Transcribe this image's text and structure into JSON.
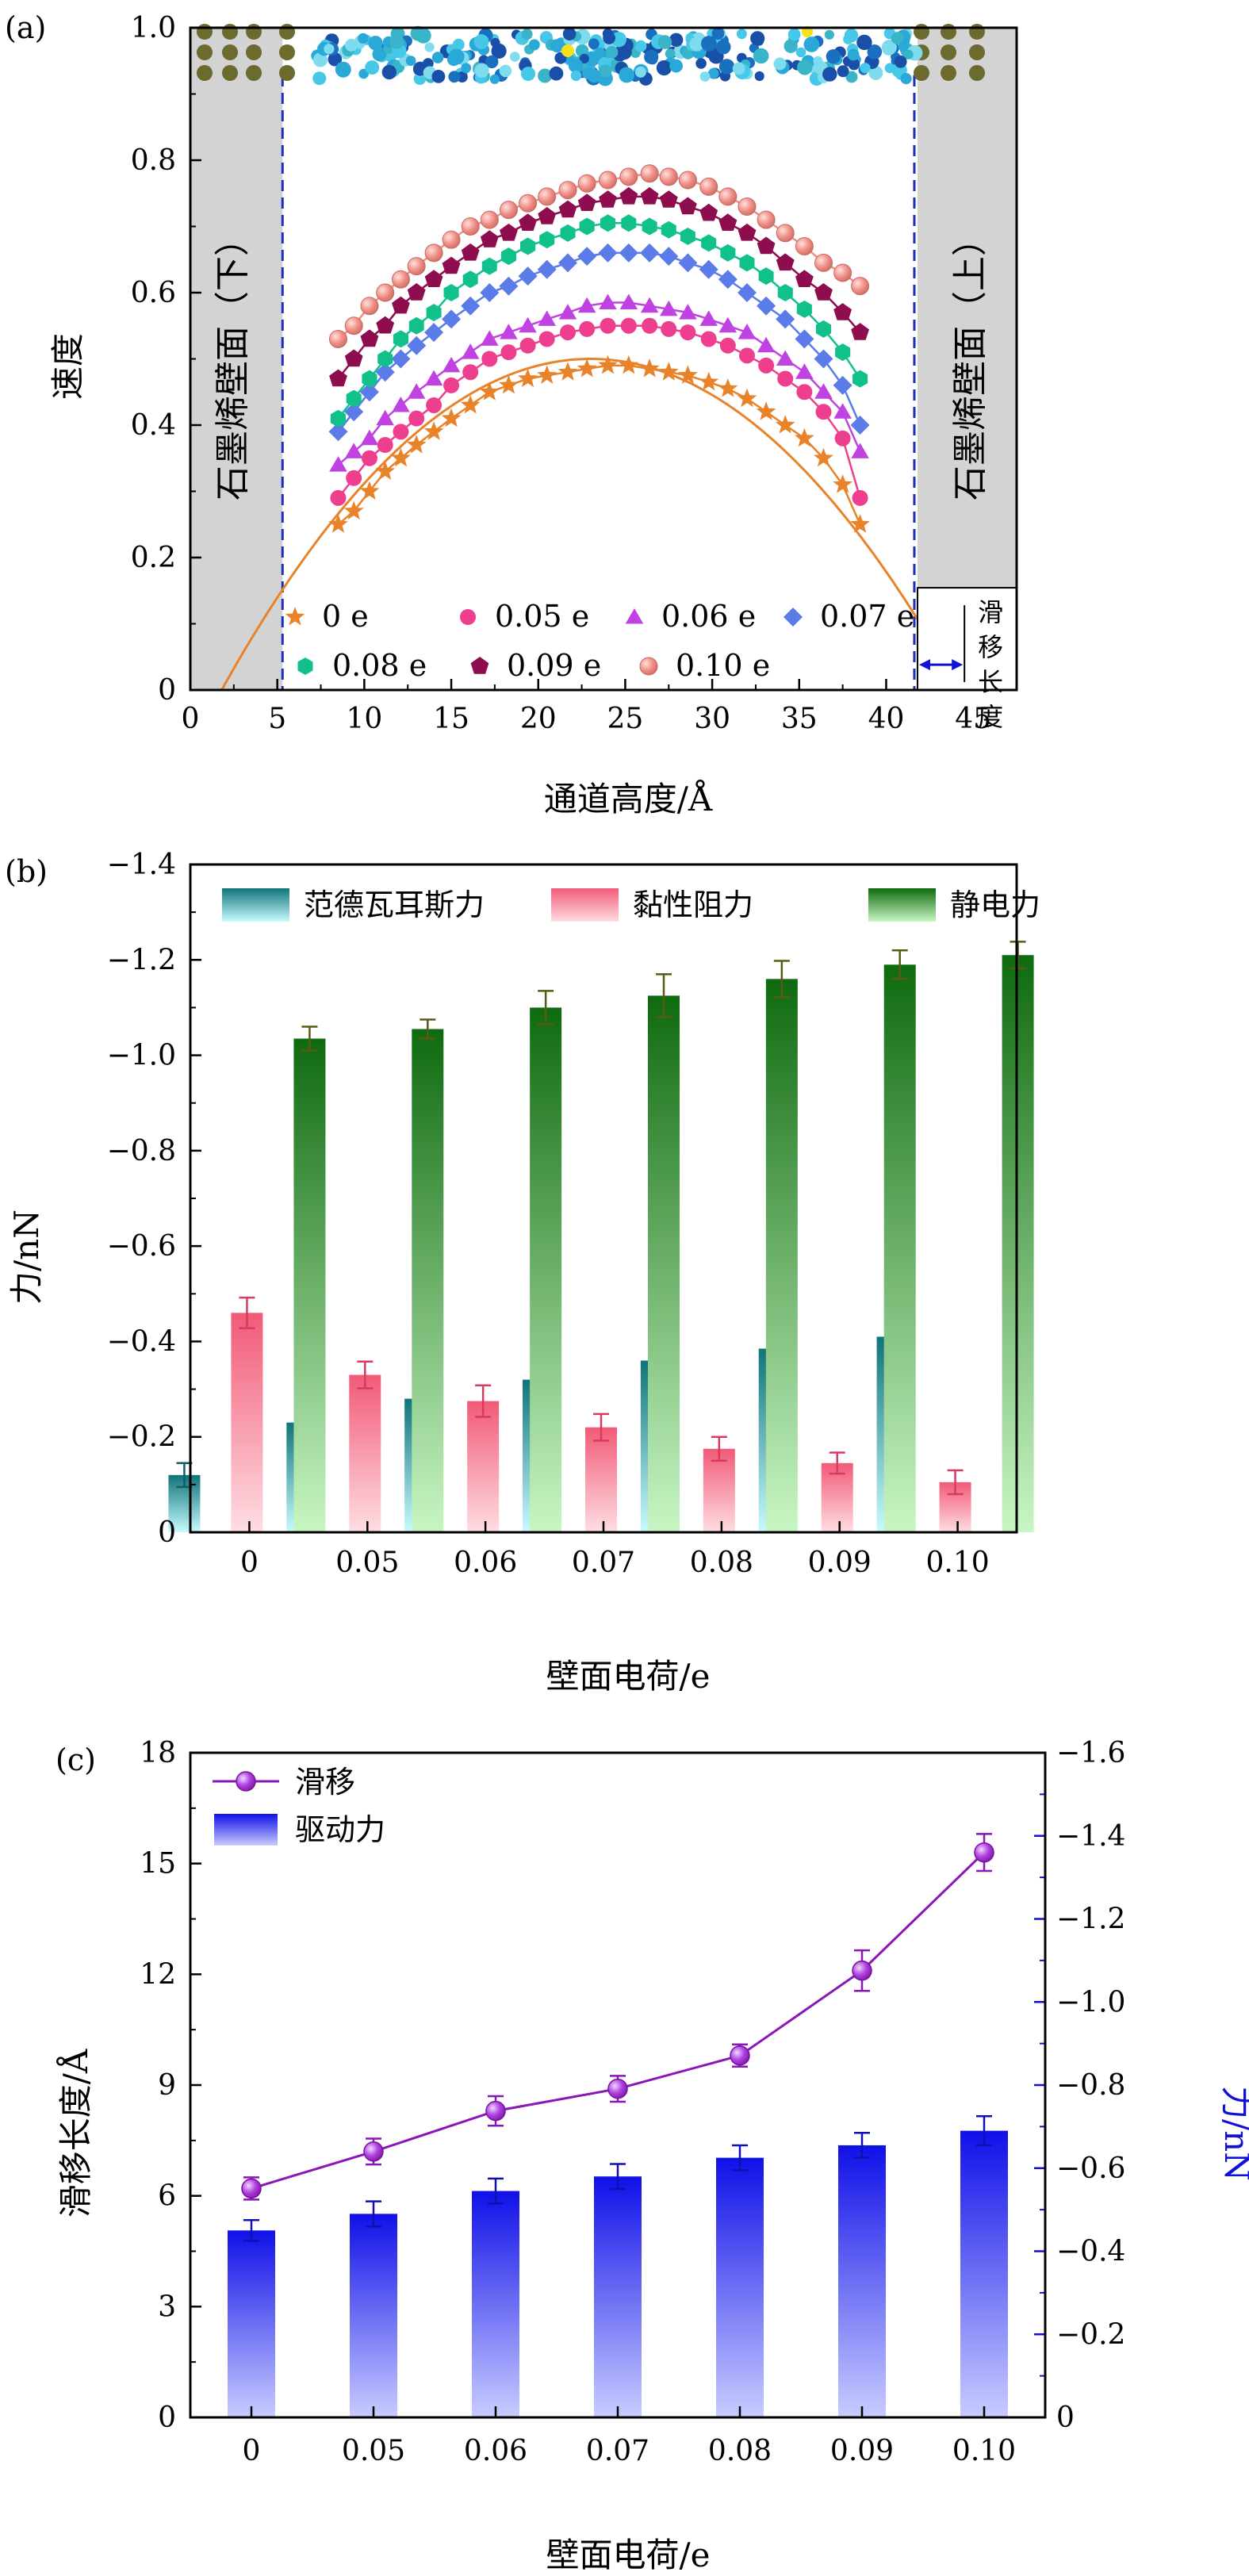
{
  "colors": {
    "c0": "#e8832a",
    "c005": "#ee3f8e",
    "c006": "#c042e0",
    "c007": "#5a7be8",
    "c008": "#12c08c",
    "c009": "#8e0d4f",
    "c010": "#ef8d84",
    "vdw": "#0f7479",
    "visc": "#f0607c",
    "elec": "#146a14",
    "slip": "#8a16b8",
    "drive": "#1010e8",
    "wall": "#d3d3d3",
    "rightAxis": "#1010d8"
  },
  "panels": {
    "a": {
      "label": "(a)",
      "xlabel": "通道高度/Å",
      "ylabel": "速度",
      "wall_left": "石墨烯壁面（下）",
      "wall_right": "石墨烯壁面（上）",
      "slip_label": "滑移长度",
      "xticks": [
        "0",
        "5",
        "10",
        "15",
        "20",
        "25",
        "30",
        "35",
        "40",
        "45"
      ],
      "yticks": [
        "0",
        "0.2",
        "0.4",
        "0.6",
        "0.8",
        "1.0"
      ]
    },
    "b": {
      "label": "(b)",
      "xlabel": "壁面电荷/e",
      "ylabel": "力/nN",
      "yticks": [
        "0",
        "−0.2",
        "−0.4",
        "−0.6",
        "−0.8",
        "−1.0",
        "−1.2",
        "−1.4"
      ]
    },
    "c": {
      "label": "(c)",
      "xlabel": "壁面电荷/e",
      "ylabel": "滑移长度/Å",
      "ylabel_right": "力/nN",
      "yticks": [
        "0",
        "3",
        "6",
        "9",
        "12",
        "15",
        "18"
      ],
      "yticks_right": [
        "0",
        "−0.2",
        "−0.4",
        "−0.6",
        "−0.8",
        "−1.0",
        "−1.2",
        "−1.4",
        "−1.6"
      ]
    }
  },
  "chart_data": [
    {
      "type": "scatter",
      "panel": "a",
      "x": [
        8.5,
        9.4,
        10.3,
        11.2,
        12.1,
        13.0,
        14.0,
        15.0,
        16.1,
        17.2,
        18.3,
        19.4,
        20.5,
        21.7,
        22.8,
        24.0,
        25.2,
        26.4,
        27.5,
        28.6,
        29.8,
        30.9,
        32.0,
        33.1,
        34.2,
        35.3,
        36.4,
        37.5,
        38.5
      ],
      "xlim": [
        0,
        47.5
      ],
      "ylim": [
        0,
        1.0
      ],
      "series": [
        {
          "name": "0 e",
          "marker": "star",
          "color": "#e8832a",
          "values": [
            0.25,
            0.27,
            0.3,
            0.33,
            0.35,
            0.37,
            0.39,
            0.41,
            0.43,
            0.45,
            0.46,
            0.47,
            0.475,
            0.48,
            0.485,
            0.49,
            0.49,
            0.485,
            0.48,
            0.475,
            0.465,
            0.455,
            0.44,
            0.42,
            0.4,
            0.38,
            0.35,
            0.31,
            0.25
          ]
        },
        {
          "name": "0.05 e",
          "marker": "circle",
          "color": "#ee3f8e",
          "values": [
            0.29,
            0.32,
            0.35,
            0.37,
            0.39,
            0.41,
            0.43,
            0.46,
            0.48,
            0.5,
            0.51,
            0.52,
            0.53,
            0.54,
            0.545,
            0.55,
            0.55,
            0.55,
            0.545,
            0.54,
            0.53,
            0.52,
            0.505,
            0.49,
            0.47,
            0.45,
            0.42,
            0.38,
            0.29
          ]
        },
        {
          "name": "0.06 e",
          "marker": "triangle",
          "color": "#c042e0",
          "values": [
            0.34,
            0.36,
            0.38,
            0.41,
            0.43,
            0.45,
            0.47,
            0.49,
            0.51,
            0.53,
            0.54,
            0.55,
            0.56,
            0.57,
            0.58,
            0.585,
            0.585,
            0.58,
            0.575,
            0.57,
            0.56,
            0.55,
            0.54,
            0.52,
            0.5,
            0.48,
            0.45,
            0.42,
            0.36
          ]
        },
        {
          "name": "0.07 e",
          "marker": "diamond",
          "color": "#5a7be8",
          "values": [
            0.39,
            0.42,
            0.45,
            0.48,
            0.5,
            0.52,
            0.54,
            0.56,
            0.58,
            0.6,
            0.61,
            0.625,
            0.635,
            0.645,
            0.655,
            0.66,
            0.66,
            0.66,
            0.655,
            0.645,
            0.635,
            0.62,
            0.6,
            0.58,
            0.56,
            0.53,
            0.5,
            0.46,
            0.4
          ]
        },
        {
          "name": "0.08 e",
          "marker": "hexagon",
          "color": "#12c08c",
          "values": [
            0.41,
            0.44,
            0.47,
            0.5,
            0.53,
            0.55,
            0.57,
            0.6,
            0.62,
            0.64,
            0.655,
            0.67,
            0.68,
            0.69,
            0.7,
            0.705,
            0.705,
            0.7,
            0.695,
            0.685,
            0.675,
            0.66,
            0.645,
            0.625,
            0.6,
            0.575,
            0.545,
            0.51,
            0.47
          ]
        },
        {
          "name": "0.09 e",
          "marker": "pentagon",
          "color": "#8e0d4f",
          "values": [
            0.47,
            0.5,
            0.53,
            0.55,
            0.58,
            0.6,
            0.62,
            0.64,
            0.66,
            0.68,
            0.69,
            0.705,
            0.715,
            0.725,
            0.735,
            0.74,
            0.745,
            0.745,
            0.74,
            0.73,
            0.72,
            0.705,
            0.69,
            0.67,
            0.645,
            0.62,
            0.6,
            0.57,
            0.54
          ]
        },
        {
          "name": "0.10 e",
          "marker": "ball",
          "color": "#ef8d84",
          "values": [
            0.53,
            0.55,
            0.58,
            0.6,
            0.62,
            0.64,
            0.66,
            0.68,
            0.7,
            0.71,
            0.725,
            0.735,
            0.745,
            0.755,
            0.765,
            0.77,
            0.775,
            0.78,
            0.775,
            0.77,
            0.76,
            0.745,
            0.73,
            0.71,
            0.69,
            0.67,
            0.645,
            0.63,
            0.61
          ]
        }
      ],
      "fit_curve": {
        "series": "0 e",
        "peak_x": 23.0,
        "peak_y": 0.5,
        "zero_x": [
          1.8,
          44.2
        ]
      },
      "walls": {
        "left": [
          0,
          5.3
        ],
        "right": [
          41.8,
          47.5
        ]
      },
      "slip_marker": {
        "x": [
          41.8,
          44.5
        ],
        "y": 0.14
      }
    },
    {
      "type": "bar",
      "panel": "b",
      "categories": [
        "0",
        "0.05",
        "0.06",
        "0.07",
        "0.08",
        "0.09",
        "0.10"
      ],
      "ylim": [
        0,
        -1.4
      ],
      "series": [
        {
          "name": "范德瓦耳斯力",
          "color": "#0f7479",
          "values": [
            -0.12,
            -0.23,
            -0.28,
            -0.32,
            -0.36,
            -0.385,
            -0.41
          ],
          "errors": [
            0.025,
            0.028,
            0.035,
            0.03,
            0.025,
            0.028,
            0.037
          ]
        },
        {
          "name": "黏性阻力",
          "color": "#f0607c",
          "values": [
            -0.46,
            -0.33,
            -0.275,
            -0.22,
            -0.175,
            -0.145,
            -0.105
          ],
          "errors": [
            0.032,
            0.028,
            0.033,
            0.028,
            0.025,
            0.022,
            0.025
          ]
        },
        {
          "name": "静电力",
          "color": "#146a14",
          "values": [
            -1.035,
            -1.055,
            -1.1,
            -1.125,
            -1.16,
            -1.19,
            -1.21
          ],
          "errors": [
            0.025,
            0.02,
            0.035,
            0.045,
            0.038,
            0.03,
            0.028
          ]
        }
      ]
    },
    {
      "type": "bar",
      "panel": "c",
      "categories": [
        "0",
        "0.05",
        "0.06",
        "0.07",
        "0.08",
        "0.09",
        "0.10"
      ],
      "series": [
        {
          "name": "滑移",
          "kind": "line",
          "axis": "left",
          "color": "#8a16b8",
          "values": [
            6.2,
            7.2,
            8.3,
            8.9,
            9.8,
            12.1,
            15.3
          ],
          "errors": [
            0.3,
            0.35,
            0.4,
            0.35,
            0.3,
            0.55,
            0.5
          ]
        },
        {
          "name": "驱动力",
          "kind": "bar",
          "axis": "right",
          "color": "#1010e8",
          "values": [
            -0.45,
            -0.49,
            -0.545,
            -0.58,
            -0.625,
            -0.655,
            -0.69
          ],
          "errors": [
            0.025,
            0.03,
            0.03,
            0.03,
            0.03,
            0.03,
            0.035
          ]
        }
      ],
      "ylim_left": [
        0,
        18
      ],
      "ylim_right": [
        0,
        -1.6
      ]
    }
  ]
}
